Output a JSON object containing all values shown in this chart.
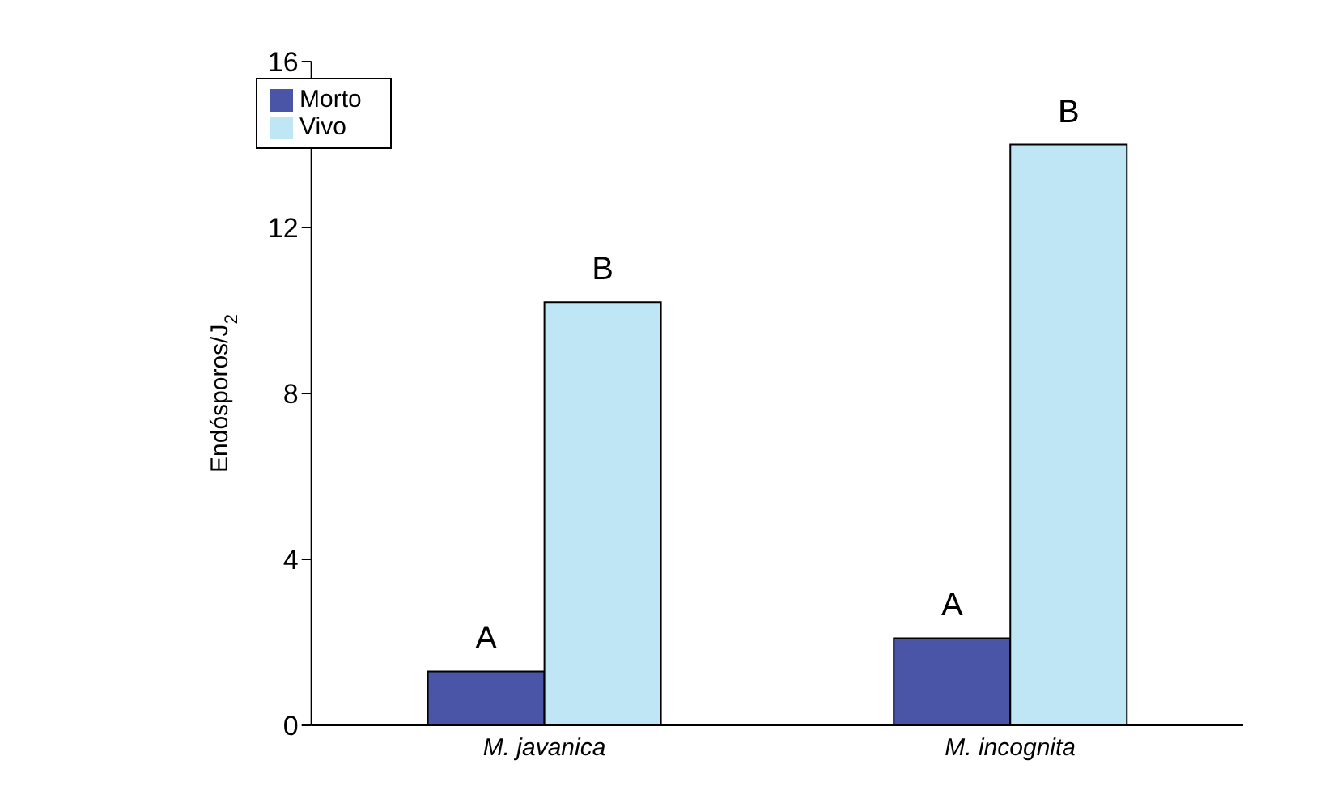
{
  "chart_data": {
    "type": "bar",
    "ylabel": "Endósporos/J$_{2}$",
    "categories": [
      "M. javanica",
      "M. incognita"
    ],
    "series": [
      {
        "name": "Morto",
        "color": "#4b55a8",
        "values": [
          1.3,
          2.1
        ],
        "value_labels": [
          "A",
          "A"
        ]
      },
      {
        "name": "Vivo",
        "color": "#bfe6f5",
        "values": [
          10.2,
          14
        ],
        "value_labels": [
          "B",
          "B"
        ]
      }
    ],
    "ylim": [
      0,
      16
    ],
    "yticks": [
      0,
      4,
      8,
      12,
      16
    ],
    "grid": false,
    "legend": "top left"
  }
}
